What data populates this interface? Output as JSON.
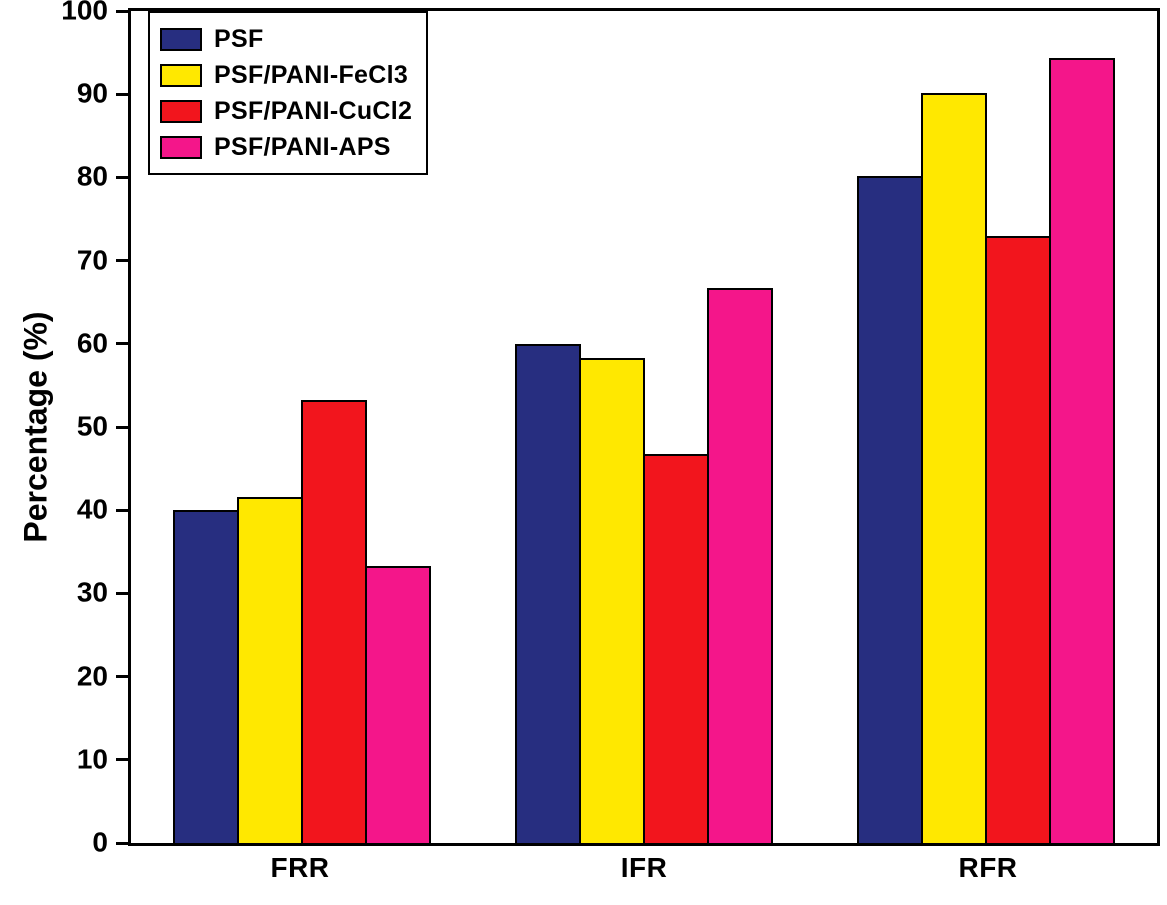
{
  "chart_data": {
    "type": "bar",
    "title": "",
    "xlabel": "",
    "ylabel": "Percentage (%)",
    "categories": [
      "FRR",
      "IFR",
      "RFR"
    ],
    "series": [
      {
        "name": "PSF",
        "color": "#272e80",
        "values": [
          40.0,
          60.0,
          80.2
        ]
      },
      {
        "name": "PSF/PANI-FeCl3",
        "color": "#ffe800",
        "values": [
          41.6,
          58.3,
          90.1
        ]
      },
      {
        "name": "PSF/PANI-CuCl2",
        "color": "#f2151d",
        "values": [
          53.2,
          46.8,
          73.0
        ]
      },
      {
        "name": "PSF/PANI-APS",
        "color": "#f4168a",
        "values": [
          33.3,
          66.7,
          94.3
        ]
      }
    ],
    "ylim": [
      0,
      100
    ],
    "yticks": [
      0,
      10,
      20,
      30,
      40,
      50,
      60,
      70,
      80,
      90,
      100
    ],
    "grid": false,
    "legend_position": "top-left",
    "bar_edge_color": "#000000",
    "background_color": "#ffffff"
  }
}
